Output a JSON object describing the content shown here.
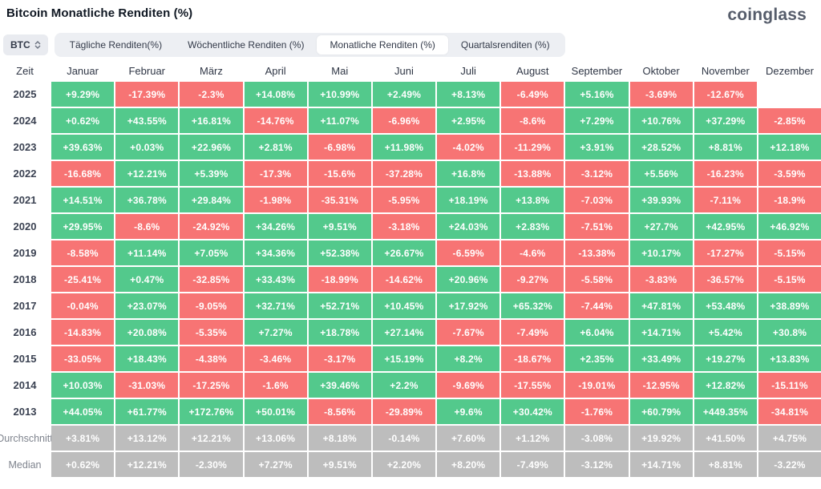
{
  "header": {
    "title": "Bitcoin Monatliche Renditen (%)",
    "logo_text": "coinglass"
  },
  "controls": {
    "coin_selector": {
      "value": "BTC"
    },
    "tabs": [
      {
        "label": "Tägliche Renditen(%)",
        "active": false
      },
      {
        "label": "Wöchentliche Renditen (%)",
        "active": false
      },
      {
        "label": "Monatliche Renditen (%)",
        "active": true
      },
      {
        "label": "Quartalsrenditen (%)",
        "active": false
      }
    ]
  },
  "colors": {
    "positive": "#53c98c",
    "negative": "#f77474",
    "neutral": "#bdbdbd"
  },
  "chart_data": {
    "type": "table",
    "title": "Bitcoin Monatliche Renditen (%)",
    "columns": [
      "Zeit",
      "Januar",
      "Februar",
      "März",
      "April",
      "Mai",
      "Juni",
      "Juli",
      "August",
      "September",
      "Oktober",
      "November",
      "Dezember"
    ],
    "rows": [
      {
        "label": "2025",
        "summary": false,
        "values": [
          "+9.29%",
          "-17.39%",
          "-2.3%",
          "+14.08%",
          "+10.99%",
          "+2.49%",
          "+8.13%",
          "-6.49%",
          "+5.16%",
          "-3.69%",
          "-12.67%",
          ""
        ]
      },
      {
        "label": "2024",
        "summary": false,
        "values": [
          "+0.62%",
          "+43.55%",
          "+16.81%",
          "-14.76%",
          "+11.07%",
          "-6.96%",
          "+2.95%",
          "-8.6%",
          "+7.29%",
          "+10.76%",
          "+37.29%",
          "-2.85%"
        ]
      },
      {
        "label": "2023",
        "summary": false,
        "values": [
          "+39.63%",
          "+0.03%",
          "+22.96%",
          "+2.81%",
          "-6.98%",
          "+11.98%",
          "-4.02%",
          "-11.29%",
          "+3.91%",
          "+28.52%",
          "+8.81%",
          "+12.18%"
        ]
      },
      {
        "label": "2022",
        "summary": false,
        "values": [
          "-16.68%",
          "+12.21%",
          "+5.39%",
          "-17.3%",
          "-15.6%",
          "-37.28%",
          "+16.8%",
          "-13.88%",
          "-3.12%",
          "+5.56%",
          "-16.23%",
          "-3.59%"
        ]
      },
      {
        "label": "2021",
        "summary": false,
        "values": [
          "+14.51%",
          "+36.78%",
          "+29.84%",
          "-1.98%",
          "-35.31%",
          "-5.95%",
          "+18.19%",
          "+13.8%",
          "-7.03%",
          "+39.93%",
          "-7.11%",
          "-18.9%"
        ]
      },
      {
        "label": "2020",
        "summary": false,
        "values": [
          "+29.95%",
          "-8.6%",
          "-24.92%",
          "+34.26%",
          "+9.51%",
          "-3.18%",
          "+24.03%",
          "+2.83%",
          "-7.51%",
          "+27.7%",
          "+42.95%",
          "+46.92%"
        ]
      },
      {
        "label": "2019",
        "summary": false,
        "values": [
          "-8.58%",
          "+11.14%",
          "+7.05%",
          "+34.36%",
          "+52.38%",
          "+26.67%",
          "-6.59%",
          "-4.6%",
          "-13.38%",
          "+10.17%",
          "-17.27%",
          "-5.15%"
        ]
      },
      {
        "label": "2018",
        "summary": false,
        "values": [
          "-25.41%",
          "+0.47%",
          "-32.85%",
          "+33.43%",
          "-18.99%",
          "-14.62%",
          "+20.96%",
          "-9.27%",
          "-5.58%",
          "-3.83%",
          "-36.57%",
          "-5.15%"
        ]
      },
      {
        "label": "2017",
        "summary": false,
        "values": [
          "-0.04%",
          "+23.07%",
          "-9.05%",
          "+32.71%",
          "+52.71%",
          "+10.45%",
          "+17.92%",
          "+65.32%",
          "-7.44%",
          "+47.81%",
          "+53.48%",
          "+38.89%"
        ]
      },
      {
        "label": "2016",
        "summary": false,
        "values": [
          "-14.83%",
          "+20.08%",
          "-5.35%",
          "+7.27%",
          "+18.78%",
          "+27.14%",
          "-7.67%",
          "-7.49%",
          "+6.04%",
          "+14.71%",
          "+5.42%",
          "+30.8%"
        ]
      },
      {
        "label": "2015",
        "summary": false,
        "values": [
          "-33.05%",
          "+18.43%",
          "-4.38%",
          "-3.46%",
          "-3.17%",
          "+15.19%",
          "+8.2%",
          "-18.67%",
          "+2.35%",
          "+33.49%",
          "+19.27%",
          "+13.83%"
        ]
      },
      {
        "label": "2014",
        "summary": false,
        "values": [
          "+10.03%",
          "-31.03%",
          "-17.25%",
          "-1.6%",
          "+39.46%",
          "+2.2%",
          "-9.69%",
          "-17.55%",
          "-19.01%",
          "-12.95%",
          "+12.82%",
          "-15.11%"
        ]
      },
      {
        "label": "2013",
        "summary": false,
        "values": [
          "+44.05%",
          "+61.77%",
          "+172.76%",
          "+50.01%",
          "-8.56%",
          "-29.89%",
          "+9.6%",
          "+30.42%",
          "-1.76%",
          "+60.79%",
          "+449.35%",
          "-34.81%"
        ]
      },
      {
        "label": "Durchschnitt",
        "summary": true,
        "values": [
          "+3.81%",
          "+13.12%",
          "+12.21%",
          "+13.06%",
          "+8.18%",
          "-0.14%",
          "+7.60%",
          "+1.12%",
          "-3.08%",
          "+19.92%",
          "+41.50%",
          "+4.75%"
        ]
      },
      {
        "label": "Median",
        "summary": true,
        "values": [
          "+0.62%",
          "+12.21%",
          "-2.30%",
          "+7.27%",
          "+9.51%",
          "+2.20%",
          "+8.20%",
          "-7.49%",
          "-3.12%",
          "+14.71%",
          "+8.81%",
          "-3.22%"
        ]
      }
    ]
  }
}
